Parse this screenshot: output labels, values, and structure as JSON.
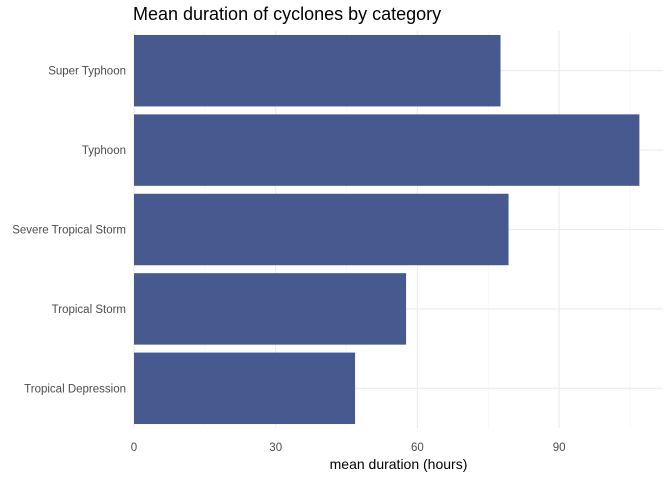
{
  "chart_data": {
    "type": "bar",
    "orientation": "horizontal",
    "title": "Mean duration of cyclones by category",
    "xlabel": "mean duration (hours)",
    "ylabel": "",
    "categories": [
      "Tropical Depression",
      "Tropical Storm",
      "Severe Tropical Storm",
      "Typhoon",
      "Super Typhoon"
    ],
    "values": [
      46.8,
      57.6,
      79.3,
      107,
      77.6
    ],
    "xlim": [
      0,
      112
    ],
    "x_ticks": [
      0,
      30,
      60,
      90
    ],
    "x_tick_labels": [
      "0",
      "30",
      "60",
      "90"
    ],
    "grid": true,
    "legend": "none",
    "colors": {
      "bar": "#465a8f",
      "grid_major": "#ebebeb",
      "grid_minor": "#f4f4f4",
      "tick_text": "#4d4d4d",
      "title_text": "#000000"
    }
  }
}
